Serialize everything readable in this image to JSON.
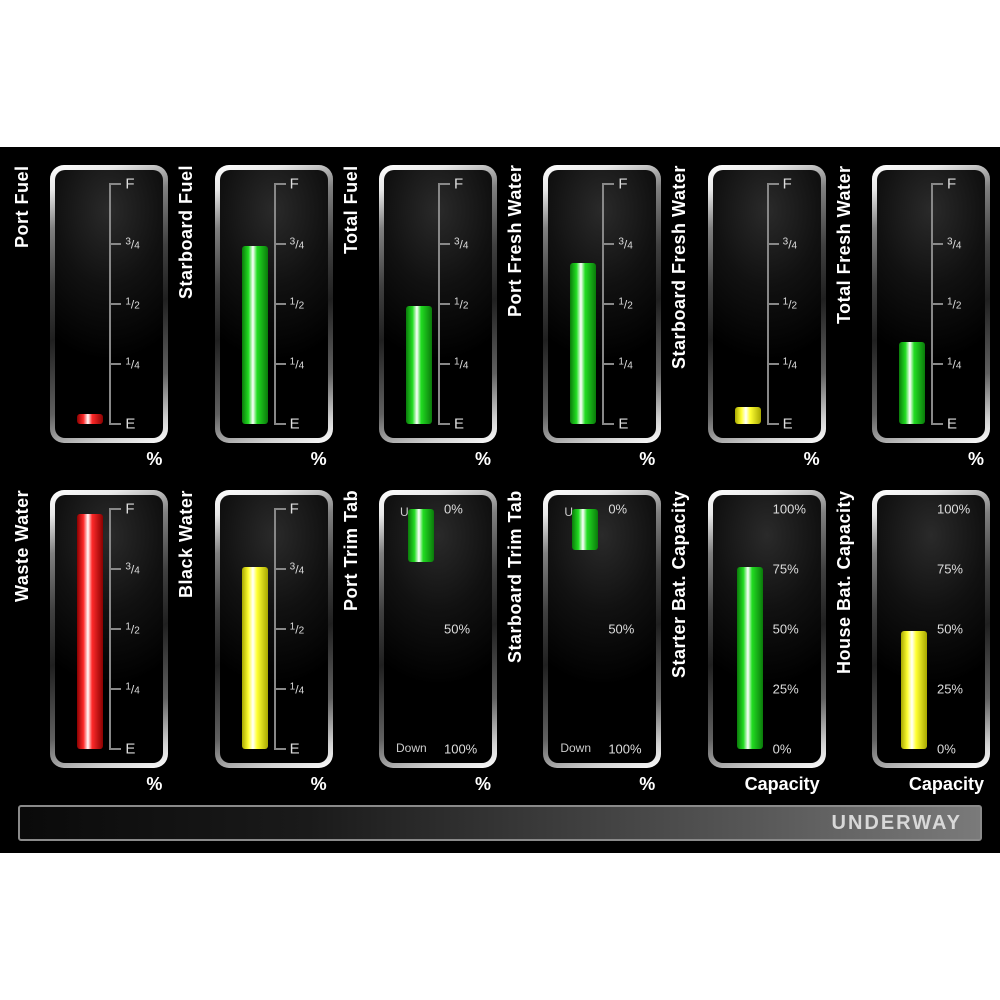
{
  "panel": {
    "background": "#000000",
    "status": "UNDERWAY"
  },
  "colors": {
    "green": "#22dd22",
    "green_dark": "#0a7a0a",
    "yellow": "#ffff33",
    "yellow_dark": "#a8a800",
    "red": "#ff2a2a",
    "red_dark": "#8a0000",
    "scale": "#888888",
    "tick_text": "#dddddd"
  },
  "scale_fuel": {
    "ticks": [
      {
        "pos": 0,
        "len": 12,
        "label": "F"
      },
      {
        "pos": 25,
        "len": 12,
        "label": "3/4",
        "frac": true
      },
      {
        "pos": 50,
        "len": 12,
        "label": "1/2",
        "frac": true
      },
      {
        "pos": 75,
        "len": 12,
        "label": "1/4",
        "frac": true
      },
      {
        "pos": 100,
        "len": 12,
        "label": "E"
      }
    ]
  },
  "scale_trim": {
    "top_label": "Up",
    "bottom_label": "Down",
    "ticks": [
      {
        "pos": 0,
        "label": "0%"
      },
      {
        "pos": 50,
        "label": "50%"
      },
      {
        "pos": 100,
        "label": "100%"
      }
    ]
  },
  "scale_battery": {
    "ticks": [
      {
        "pos": 0,
        "label": "100%"
      },
      {
        "pos": 25,
        "label": "75%"
      },
      {
        "pos": 50,
        "label": "50%"
      },
      {
        "pos": 75,
        "label": "25%"
      },
      {
        "pos": 100,
        "label": "0%"
      }
    ]
  },
  "gauges_row1": [
    {
      "id": "port-fuel",
      "label": "Port Fuel",
      "type": "fuel",
      "value": 4,
      "color": "red",
      "unit": "%"
    },
    {
      "id": "starboard-fuel",
      "label": "Starboard Fuel",
      "type": "fuel",
      "value": 74,
      "color": "green",
      "unit": "%"
    },
    {
      "id": "total-fuel",
      "label": "Total Fuel",
      "type": "fuel",
      "value": 49,
      "color": "green",
      "unit": "%"
    },
    {
      "id": "port-fresh-water",
      "label": "Port Fresh Water",
      "type": "fuel",
      "value": 67,
      "color": "green",
      "unit": "%"
    },
    {
      "id": "starboard-fresh-water",
      "label": "Starboard Fresh Water",
      "type": "fuel",
      "value": 7,
      "color": "yellow",
      "unit": "%"
    },
    {
      "id": "total-fresh-water",
      "label": "Total Fresh Water",
      "type": "fuel",
      "value": 34,
      "color": "green",
      "unit": "%"
    }
  ],
  "gauges_row2": [
    {
      "id": "waste-water",
      "label": "Waste Water",
      "type": "fuel",
      "value": 98,
      "color": "red",
      "unit": "%"
    },
    {
      "id": "black-water",
      "label": "Black Water",
      "type": "fuel",
      "value": 76,
      "color": "yellow",
      "unit": "%"
    },
    {
      "id": "port-trim-tab",
      "label": "Port Trim Tab",
      "type": "trim",
      "value": 22,
      "color": "green",
      "unit": "%"
    },
    {
      "id": "starboard-trim-tab",
      "label": "Starboard Trim Tab",
      "type": "trim",
      "value": 17,
      "color": "green",
      "unit": "%"
    },
    {
      "id": "starter-bat-capacity",
      "label": "Starter Bat. Capacity",
      "type": "battery",
      "value": 76,
      "color": "green",
      "unit": "Capacity"
    },
    {
      "id": "house-bat-capacity",
      "label": "House Bat. Capacity",
      "type": "battery",
      "value": 49,
      "color": "yellow",
      "unit": "Capacity"
    }
  ]
}
